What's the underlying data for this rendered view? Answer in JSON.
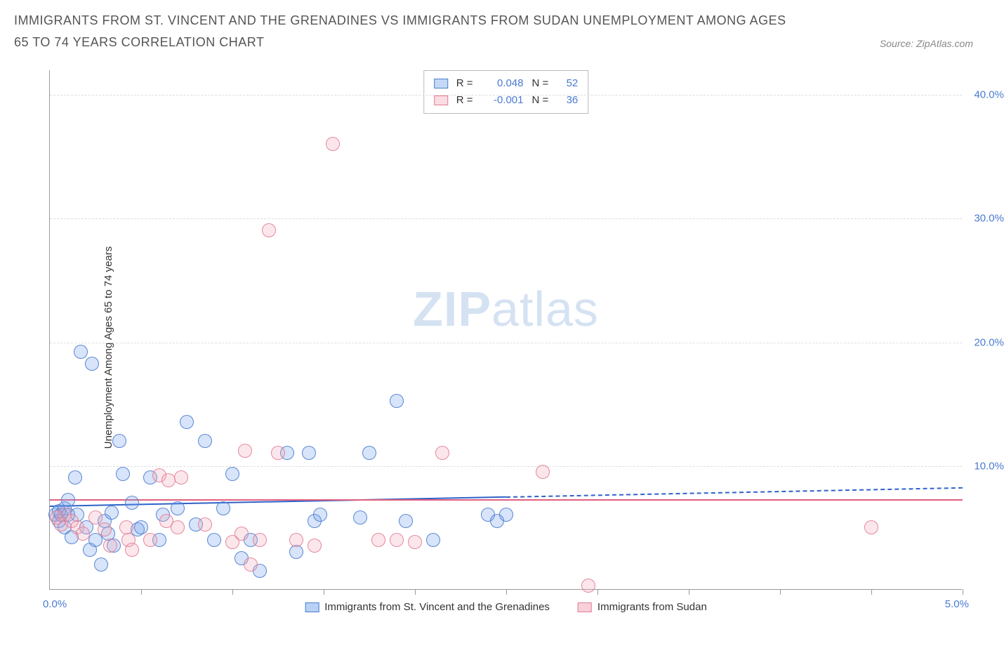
{
  "title": "IMMIGRANTS FROM ST. VINCENT AND THE GRENADINES VS IMMIGRANTS FROM SUDAN UNEMPLOYMENT AMONG AGES 65 TO 74 YEARS CORRELATION CHART",
  "source": "Source: ZipAtlas.com",
  "ylabel": "Unemployment Among Ages 65 to 74 years",
  "watermark_zip": "ZIP",
  "watermark_atlas": "atlas",
  "chart": {
    "type": "scatter",
    "xlim": [
      0.0,
      5.0
    ],
    "ylim": [
      0.0,
      42.0
    ],
    "x_tick_positions": [
      0.5,
      1.0,
      1.5,
      2.0,
      2.5,
      3.0,
      3.5,
      4.0,
      4.5,
      5.0
    ],
    "y_ticks": [
      {
        "v": 10.0,
        "label": "10.0%"
      },
      {
        "v": 20.0,
        "label": "20.0%"
      },
      {
        "v": 30.0,
        "label": "30.0%"
      },
      {
        "v": 40.0,
        "label": "40.0%"
      }
    ],
    "x_label_min": "0.0%",
    "x_label_max": "5.0%",
    "background_color": "#ffffff",
    "grid_color": "#dddddd",
    "axis_color": "#999999",
    "marker_radius": 10,
    "marker_fill_opacity": 0.28,
    "marker_stroke_opacity": 0.9,
    "series": [
      {
        "name": "Immigrants from St. Vincent and the Grenadines",
        "color": "#6f9fe8",
        "stroke": "#4a7bd0",
        "R": "0.048",
        "N": "52",
        "trend": {
          "y0": 6.8,
          "y1": 8.3,
          "x_solid_end": 2.5,
          "color": "#2f62c8"
        },
        "points": [
          [
            0.03,
            6.0
          ],
          [
            0.05,
            5.5
          ],
          [
            0.05,
            6.3
          ],
          [
            0.06,
            6.0
          ],
          [
            0.08,
            5.0
          ],
          [
            0.08,
            6.5
          ],
          [
            0.1,
            6.0
          ],
          [
            0.1,
            7.2
          ],
          [
            0.12,
            4.2
          ],
          [
            0.14,
            9.0
          ],
          [
            0.15,
            6.0
          ],
          [
            0.17,
            19.2
          ],
          [
            0.2,
            5.0
          ],
          [
            0.22,
            3.2
          ],
          [
            0.23,
            18.2
          ],
          [
            0.25,
            4.0
          ],
          [
            0.28,
            2.0
          ],
          [
            0.3,
            5.5
          ],
          [
            0.32,
            4.5
          ],
          [
            0.34,
            6.2
          ],
          [
            0.35,
            3.5
          ],
          [
            0.38,
            12.0
          ],
          [
            0.4,
            9.3
          ],
          [
            0.45,
            7.0
          ],
          [
            0.48,
            4.8
          ],
          [
            0.5,
            5.0
          ],
          [
            0.55,
            9.0
          ],
          [
            0.6,
            4.0
          ],
          [
            0.62,
            6.0
          ],
          [
            0.7,
            6.5
          ],
          [
            0.75,
            13.5
          ],
          [
            0.8,
            5.2
          ],
          [
            0.85,
            12.0
          ],
          [
            0.9,
            4.0
          ],
          [
            0.95,
            6.5
          ],
          [
            1.0,
            9.3
          ],
          [
            1.05,
            2.5
          ],
          [
            1.1,
            4.0
          ],
          [
            1.15,
            1.5
          ],
          [
            1.3,
            11.0
          ],
          [
            1.35,
            3.0
          ],
          [
            1.42,
            11.0
          ],
          [
            1.45,
            5.5
          ],
          [
            1.48,
            6.0
          ],
          [
            1.7,
            5.8
          ],
          [
            1.75,
            11.0
          ],
          [
            1.9,
            15.2
          ],
          [
            1.95,
            5.5
          ],
          [
            2.1,
            4.0
          ],
          [
            2.4,
            6.0
          ],
          [
            2.45,
            5.5
          ],
          [
            2.5,
            6.0
          ]
        ]
      },
      {
        "name": "Immigrants from Sudan",
        "color": "#f2a9b8",
        "stroke": "#e37b93",
        "R": "-0.001",
        "N": "36",
        "trend": {
          "y0": 7.3,
          "y1": 7.3,
          "x_solid_end": 5.0,
          "color": "#e06080"
        },
        "points": [
          [
            0.04,
            5.8
          ],
          [
            0.06,
            5.2
          ],
          [
            0.08,
            6.0
          ],
          [
            0.12,
            5.5
          ],
          [
            0.15,
            5.0
          ],
          [
            0.18,
            4.5
          ],
          [
            0.25,
            5.8
          ],
          [
            0.3,
            4.8
          ],
          [
            0.33,
            3.5
          ],
          [
            0.42,
            5.0
          ],
          [
            0.43,
            4.0
          ],
          [
            0.45,
            3.2
          ],
          [
            0.55,
            4.0
          ],
          [
            0.6,
            9.2
          ],
          [
            0.64,
            5.5
          ],
          [
            0.65,
            8.8
          ],
          [
            0.7,
            5.0
          ],
          [
            0.72,
            9.0
          ],
          [
            0.85,
            5.2
          ],
          [
            1.0,
            3.8
          ],
          [
            1.05,
            4.5
          ],
          [
            1.07,
            11.2
          ],
          [
            1.1,
            2.0
          ],
          [
            1.15,
            4.0
          ],
          [
            1.2,
            29.0
          ],
          [
            1.25,
            11.0
          ],
          [
            1.35,
            4.0
          ],
          [
            1.45,
            3.5
          ],
          [
            1.55,
            36.0
          ],
          [
            1.8,
            4.0
          ],
          [
            1.9,
            4.0
          ],
          [
            2.0,
            3.8
          ],
          [
            2.15,
            11.0
          ],
          [
            2.7,
            9.5
          ],
          [
            2.95,
            0.3
          ],
          [
            4.5,
            5.0
          ]
        ]
      }
    ]
  },
  "legend_top_labels": {
    "R": "R =",
    "N": "N ="
  },
  "legend_bottom": [
    {
      "label": "Immigrants from St. Vincent and the Grenadines",
      "fill": "#b9d1f5",
      "stroke": "#4a7bd0"
    },
    {
      "label": "Immigrants from Sudan",
      "fill": "#f8d0da",
      "stroke": "#e37b93"
    }
  ]
}
